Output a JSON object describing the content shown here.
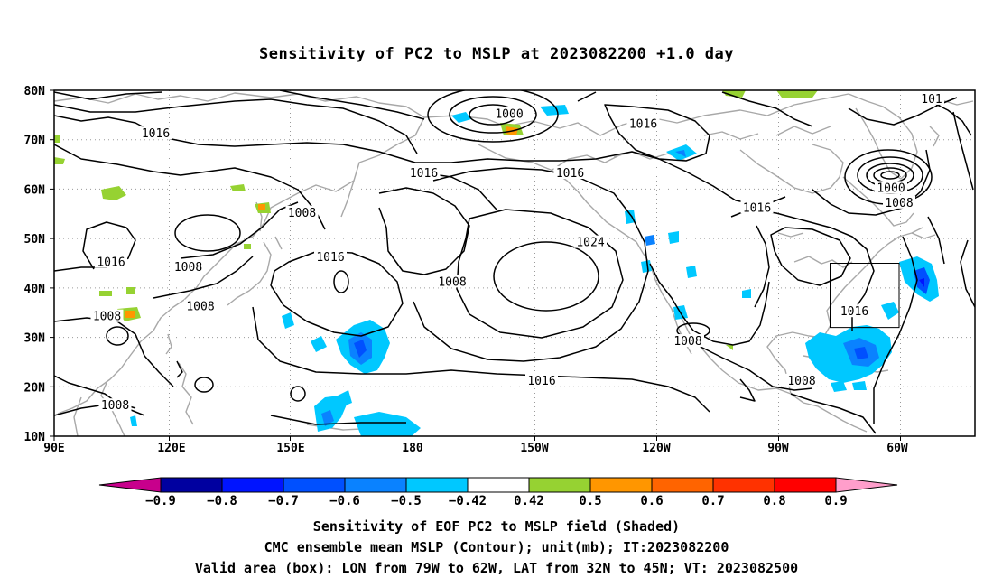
{
  "title": "Sensitivity of PC2 to MSLP at 2023082200 +1.0 day",
  "lat_labels": [
    "80N",
    "70N",
    "60N",
    "50N",
    "40N",
    "30N",
    "20N",
    "10N"
  ],
  "lon_labels": [
    "90E",
    "120E",
    "150E",
    "180",
    "150W",
    "120W",
    "90W",
    "60W"
  ],
  "contour_labels": [
    {
      "text": "1000",
      "lon": -158,
      "lat": 75
    },
    {
      "text": "1016",
      "lon": -125,
      "lat": 73
    },
    {
      "text": "1016",
      "lon": 115,
      "lat": 71
    },
    {
      "text": "1016",
      "lon": -179,
      "lat": 63
    },
    {
      "text": "1016",
      "lon": -143,
      "lat": 63
    },
    {
      "text": "1000",
      "lon": -64,
      "lat": 60
    },
    {
      "text": "1008",
      "lon": -62,
      "lat": 57
    },
    {
      "text": "1016",
      "lon": -97,
      "lat": 56
    },
    {
      "text": "1008",
      "lon": 151,
      "lat": 55
    },
    {
      "text": "1024",
      "lon": -138,
      "lat": 49
    },
    {
      "text": "1016",
      "lon": 104,
      "lat": 45
    },
    {
      "text": "1008",
      "lon": 123,
      "lat": 44
    },
    {
      "text": "1016",
      "lon": 158,
      "lat": 46
    },
    {
      "text": "1008",
      "lon": -172,
      "lat": 41
    },
    {
      "text": "1008",
      "lon": 103,
      "lat": 34
    },
    {
      "text": "1008",
      "lon": 126,
      "lat": 36
    },
    {
      "text": "1016",
      "lon": -73,
      "lat": 35
    },
    {
      "text": "1008",
      "lon": -114,
      "lat": 29
    },
    {
      "text": "1016",
      "lon": -150,
      "lat": 21
    },
    {
      "text": "1008",
      "lon": -86,
      "lat": 21
    },
    {
      "text": "1008",
      "lon": 105,
      "lat": 16
    },
    {
      "text": "101",
      "lon": -54,
      "lat": 78
    }
  ],
  "valid_box": {
    "lon_min": -79,
    "lon_max": -62,
    "lat_min": 32,
    "lat_max": 45
  },
  "colorbar": {
    "labels": [
      "-0.9",
      "-0.8",
      "-0.7",
      "-0.6",
      "-0.5",
      "-0.42",
      "0.42",
      "0.5",
      "0.6",
      "0.7",
      "0.8",
      "0.9"
    ],
    "colors": [
      "#0000a0",
      "#0014ff",
      "#0050ff",
      "#0a82ff",
      "#00c8ff",
      "#ffffff",
      "#96d232",
      "#ff9600",
      "#ff6400",
      "#ff3200",
      "#ff0000"
    ],
    "low_color": "#c8008c",
    "high_color": "#ff9ecb"
  },
  "caption_line1": "Sensitivity of EOF PC2 to MSLP field (Shaded)",
  "caption_line2": "CMC ensemble mean MSLP (Contour); unit(mb); IT:2023082200",
  "caption_line3": "Valid area (box): LON from 79W to 62W, LAT from 32N to 45N; VT: 2023082500"
}
